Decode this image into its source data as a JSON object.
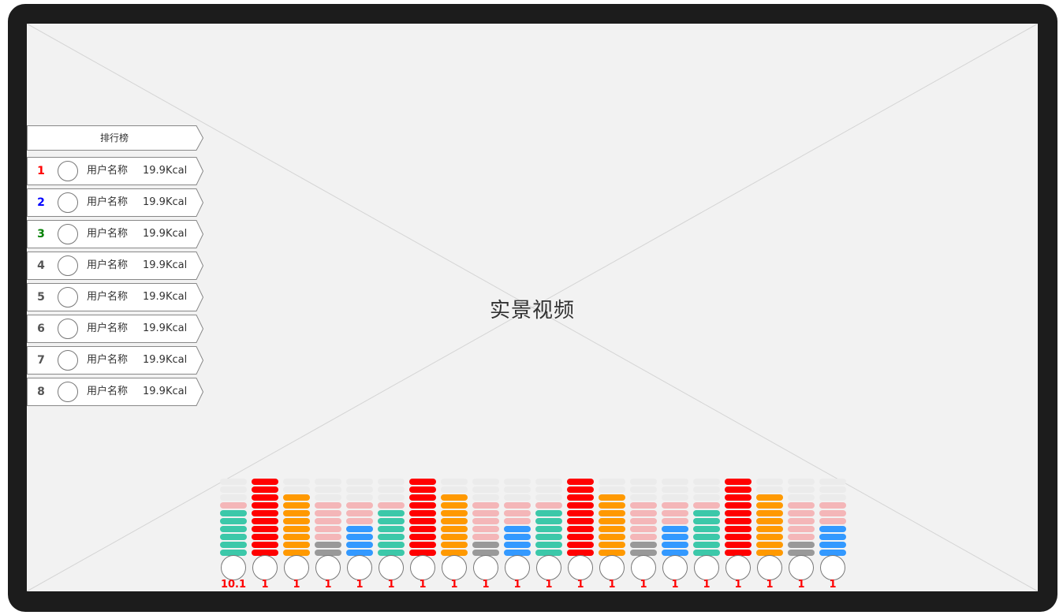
{
  "video": {
    "label": "实景视频"
  },
  "leaderboard": {
    "title": "排行榜",
    "rows": [
      {
        "rank": "1",
        "name": "用户名称",
        "value": "19.9Kcal",
        "rank_color": "#ff0000"
      },
      {
        "rank": "2",
        "name": "用户名称",
        "value": "19.9Kcal",
        "rank_color": "#0000ff"
      },
      {
        "rank": "3",
        "name": "用户名称",
        "value": "19.9Kcal",
        "rank_color": "#008000"
      },
      {
        "rank": "4",
        "name": "用户名称",
        "value": "19.9Kcal",
        "rank_color": "#555555"
      },
      {
        "rank": "5",
        "name": "用户名称",
        "value": "19.9Kcal",
        "rank_color": "#555555"
      },
      {
        "rank": "6",
        "name": "用户名称",
        "value": "19.9Kcal",
        "rank_color": "#555555"
      },
      {
        "rank": "7",
        "name": "用户名称",
        "value": "19.9Kcal",
        "rank_color": "#555555"
      },
      {
        "rank": "8",
        "name": "用户名称",
        "value": "19.9Kcal",
        "rank_color": "#555555"
      }
    ]
  },
  "meter": {
    "colors": {
      "off": "#ebebeb",
      "red": "#ff0000",
      "orange": "#ff9900",
      "pink": "#f4b6b8",
      "teal": "#3cc8a9",
      "blue": "#3399ff",
      "gray": "#999999"
    },
    "columns": [
      {
        "value": "10.1",
        "levels": [
          "teal",
          "teal",
          "teal",
          "teal",
          "teal",
          "teal",
          "pink",
          "off",
          "off",
          "off"
        ]
      },
      {
        "value": "1",
        "levels": [
          "red",
          "red",
          "red",
          "red",
          "red",
          "red",
          "red",
          "red",
          "red",
          "red"
        ]
      },
      {
        "value": "1",
        "levels": [
          "orange",
          "orange",
          "orange",
          "orange",
          "orange",
          "orange",
          "orange",
          "orange",
          "off",
          "off"
        ]
      },
      {
        "value": "1",
        "levels": [
          "gray",
          "gray",
          "pink",
          "pink",
          "pink",
          "pink",
          "pink",
          "off",
          "off",
          "off"
        ]
      },
      {
        "value": "1",
        "levels": [
          "blue",
          "blue",
          "blue",
          "blue",
          "pink",
          "pink",
          "pink",
          "off",
          "off",
          "off"
        ]
      },
      {
        "value": "1",
        "levels": [
          "teal",
          "teal",
          "teal",
          "teal",
          "teal",
          "teal",
          "pink",
          "off",
          "off",
          "off"
        ]
      },
      {
        "value": "1",
        "levels": [
          "red",
          "red",
          "red",
          "red",
          "red",
          "red",
          "red",
          "red",
          "red",
          "red"
        ]
      },
      {
        "value": "1",
        "levels": [
          "orange",
          "orange",
          "orange",
          "orange",
          "orange",
          "orange",
          "orange",
          "orange",
          "off",
          "off"
        ]
      },
      {
        "value": "1",
        "levels": [
          "gray",
          "gray",
          "pink",
          "pink",
          "pink",
          "pink",
          "pink",
          "off",
          "off",
          "off"
        ]
      },
      {
        "value": "1",
        "levels": [
          "blue",
          "blue",
          "blue",
          "blue",
          "pink",
          "pink",
          "pink",
          "off",
          "off",
          "off"
        ]
      },
      {
        "value": "1",
        "levels": [
          "teal",
          "teal",
          "teal",
          "teal",
          "teal",
          "teal",
          "pink",
          "off",
          "off",
          "off"
        ]
      },
      {
        "value": "1",
        "levels": [
          "red",
          "red",
          "red",
          "red",
          "red",
          "red",
          "red",
          "red",
          "red",
          "red"
        ]
      },
      {
        "value": "1",
        "levels": [
          "orange",
          "orange",
          "orange",
          "orange",
          "orange",
          "orange",
          "orange",
          "orange",
          "off",
          "off"
        ]
      },
      {
        "value": "1",
        "levels": [
          "gray",
          "gray",
          "pink",
          "pink",
          "pink",
          "pink",
          "pink",
          "off",
          "off",
          "off"
        ]
      },
      {
        "value": "1",
        "levels": [
          "blue",
          "blue",
          "blue",
          "blue",
          "pink",
          "pink",
          "pink",
          "off",
          "off",
          "off"
        ]
      },
      {
        "value": "1",
        "levels": [
          "teal",
          "teal",
          "teal",
          "teal",
          "teal",
          "teal",
          "pink",
          "off",
          "off",
          "off"
        ]
      },
      {
        "value": "1",
        "levels": [
          "red",
          "red",
          "red",
          "red",
          "red",
          "red",
          "red",
          "red",
          "red",
          "red"
        ]
      },
      {
        "value": "1",
        "levels": [
          "orange",
          "orange",
          "orange",
          "orange",
          "orange",
          "orange",
          "orange",
          "orange",
          "off",
          "off"
        ]
      },
      {
        "value": "1",
        "levels": [
          "gray",
          "gray",
          "pink",
          "pink",
          "pink",
          "pink",
          "pink",
          "off",
          "off",
          "off"
        ]
      },
      {
        "value": "1",
        "levels": [
          "blue",
          "blue",
          "blue",
          "blue",
          "pink",
          "pink",
          "pink",
          "off",
          "off",
          "off"
        ]
      }
    ]
  }
}
